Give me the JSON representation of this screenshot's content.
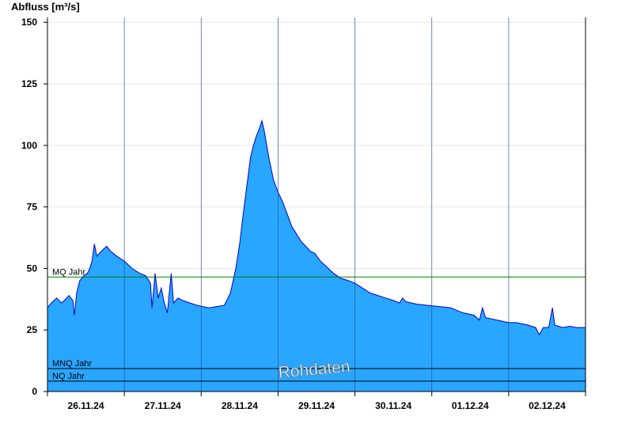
{
  "chart_data": {
    "type": "area",
    "ylabel": "Abfluss [m³/s]",
    "ylim": [
      0,
      152
    ],
    "yticks": [
      0,
      25,
      50,
      75,
      100,
      125,
      150
    ],
    "x_unit": "days since 25.11.24 12:00",
    "xlim": [
      0,
      7
    ],
    "xticks": [
      {
        "x": 0.5,
        "label": "26.11.24"
      },
      {
        "x": 1.5,
        "label": "27.11.24"
      },
      {
        "x": 2.5,
        "label": "28.11.24"
      },
      {
        "x": 3.5,
        "label": "29.11.24"
      },
      {
        "x": 4.5,
        "label": "30.11.24"
      },
      {
        "x": 5.5,
        "label": "01.12.24"
      },
      {
        "x": 6.5,
        "label": "02.12.24"
      }
    ],
    "grid": {
      "horizontal": true,
      "vertical_day_lines": true
    },
    "series": [
      {
        "name": "Abfluss",
        "fill_color": "#29a6ff",
        "line_color": "#0000cc",
        "points": [
          [
            0.0,
            34
          ],
          [
            0.05,
            36
          ],
          [
            0.12,
            38
          ],
          [
            0.18,
            36
          ],
          [
            0.22,
            37
          ],
          [
            0.28,
            39
          ],
          [
            0.33,
            37
          ],
          [
            0.35,
            31
          ],
          [
            0.38,
            40
          ],
          [
            0.42,
            45
          ],
          [
            0.47,
            47
          ],
          [
            0.52,
            48
          ],
          [
            0.55,
            50
          ],
          [
            0.58,
            53
          ],
          [
            0.61,
            60
          ],
          [
            0.64,
            55
          ],
          [
            0.7,
            57
          ],
          [
            0.77,
            59
          ],
          [
            0.82,
            57
          ],
          [
            0.9,
            55
          ],
          [
            1.0,
            53
          ],
          [
            1.1,
            50
          ],
          [
            1.2,
            48
          ],
          [
            1.28,
            47
          ],
          [
            1.34,
            44
          ],
          [
            1.36,
            34
          ],
          [
            1.4,
            48
          ],
          [
            1.44,
            38
          ],
          [
            1.48,
            42
          ],
          [
            1.52,
            36
          ],
          [
            1.56,
            32
          ],
          [
            1.61,
            48
          ],
          [
            1.64,
            36
          ],
          [
            1.7,
            38
          ],
          [
            1.76,
            37
          ],
          [
            1.85,
            36
          ],
          [
            1.95,
            35
          ],
          [
            2.1,
            34
          ],
          [
            2.2,
            34.5
          ],
          [
            2.3,
            35
          ],
          [
            2.38,
            40
          ],
          [
            2.45,
            50
          ],
          [
            2.5,
            60
          ],
          [
            2.55,
            73
          ],
          [
            2.6,
            85
          ],
          [
            2.64,
            95
          ],
          [
            2.68,
            100
          ],
          [
            2.72,
            104
          ],
          [
            2.76,
            107
          ],
          [
            2.79,
            110
          ],
          [
            2.82,
            106
          ],
          [
            2.88,
            95
          ],
          [
            2.94,
            86
          ],
          [
            3.0,
            81
          ],
          [
            3.06,
            77
          ],
          [
            3.12,
            72
          ],
          [
            3.18,
            67
          ],
          [
            3.24,
            64
          ],
          [
            3.3,
            61
          ],
          [
            3.36,
            59
          ],
          [
            3.42,
            57
          ],
          [
            3.48,
            56
          ],
          [
            3.55,
            53
          ],
          [
            3.62,
            51
          ],
          [
            3.72,
            48
          ],
          [
            3.82,
            46
          ],
          [
            3.92,
            45
          ],
          [
            4.0,
            44
          ],
          [
            4.1,
            42
          ],
          [
            4.2,
            40
          ],
          [
            4.3,
            39
          ],
          [
            4.4,
            38
          ],
          [
            4.5,
            37
          ],
          [
            4.58,
            36
          ],
          [
            4.62,
            38
          ],
          [
            4.66,
            36.5
          ],
          [
            4.8,
            35.5
          ],
          [
            4.95,
            35
          ],
          [
            5.1,
            34.5
          ],
          [
            5.25,
            34
          ],
          [
            5.4,
            32
          ],
          [
            5.55,
            31
          ],
          [
            5.62,
            29
          ],
          [
            5.66,
            34
          ],
          [
            5.7,
            30
          ],
          [
            5.85,
            29
          ],
          [
            6.0,
            28
          ],
          [
            6.1,
            28
          ],
          [
            6.25,
            27
          ],
          [
            6.35,
            26
          ],
          [
            6.4,
            23
          ],
          [
            6.45,
            26
          ],
          [
            6.52,
            26
          ],
          [
            6.57,
            34
          ],
          [
            6.6,
            27
          ],
          [
            6.7,
            26
          ],
          [
            6.8,
            26.5
          ],
          [
            6.88,
            26
          ],
          [
            6.95,
            26
          ],
          [
            7.0,
            26
          ]
        ]
      }
    ],
    "reference_lines": [
      {
        "label": "MQ Jahr",
        "value": 46.5,
        "color": "#008000"
      },
      {
        "label": "MNQ Jahr",
        "value": 9.3,
        "color": "#000000"
      },
      {
        "label": "NQ Jahr",
        "value": 4.2,
        "color": "#000000"
      }
    ],
    "annotation": "Rohdaten"
  }
}
